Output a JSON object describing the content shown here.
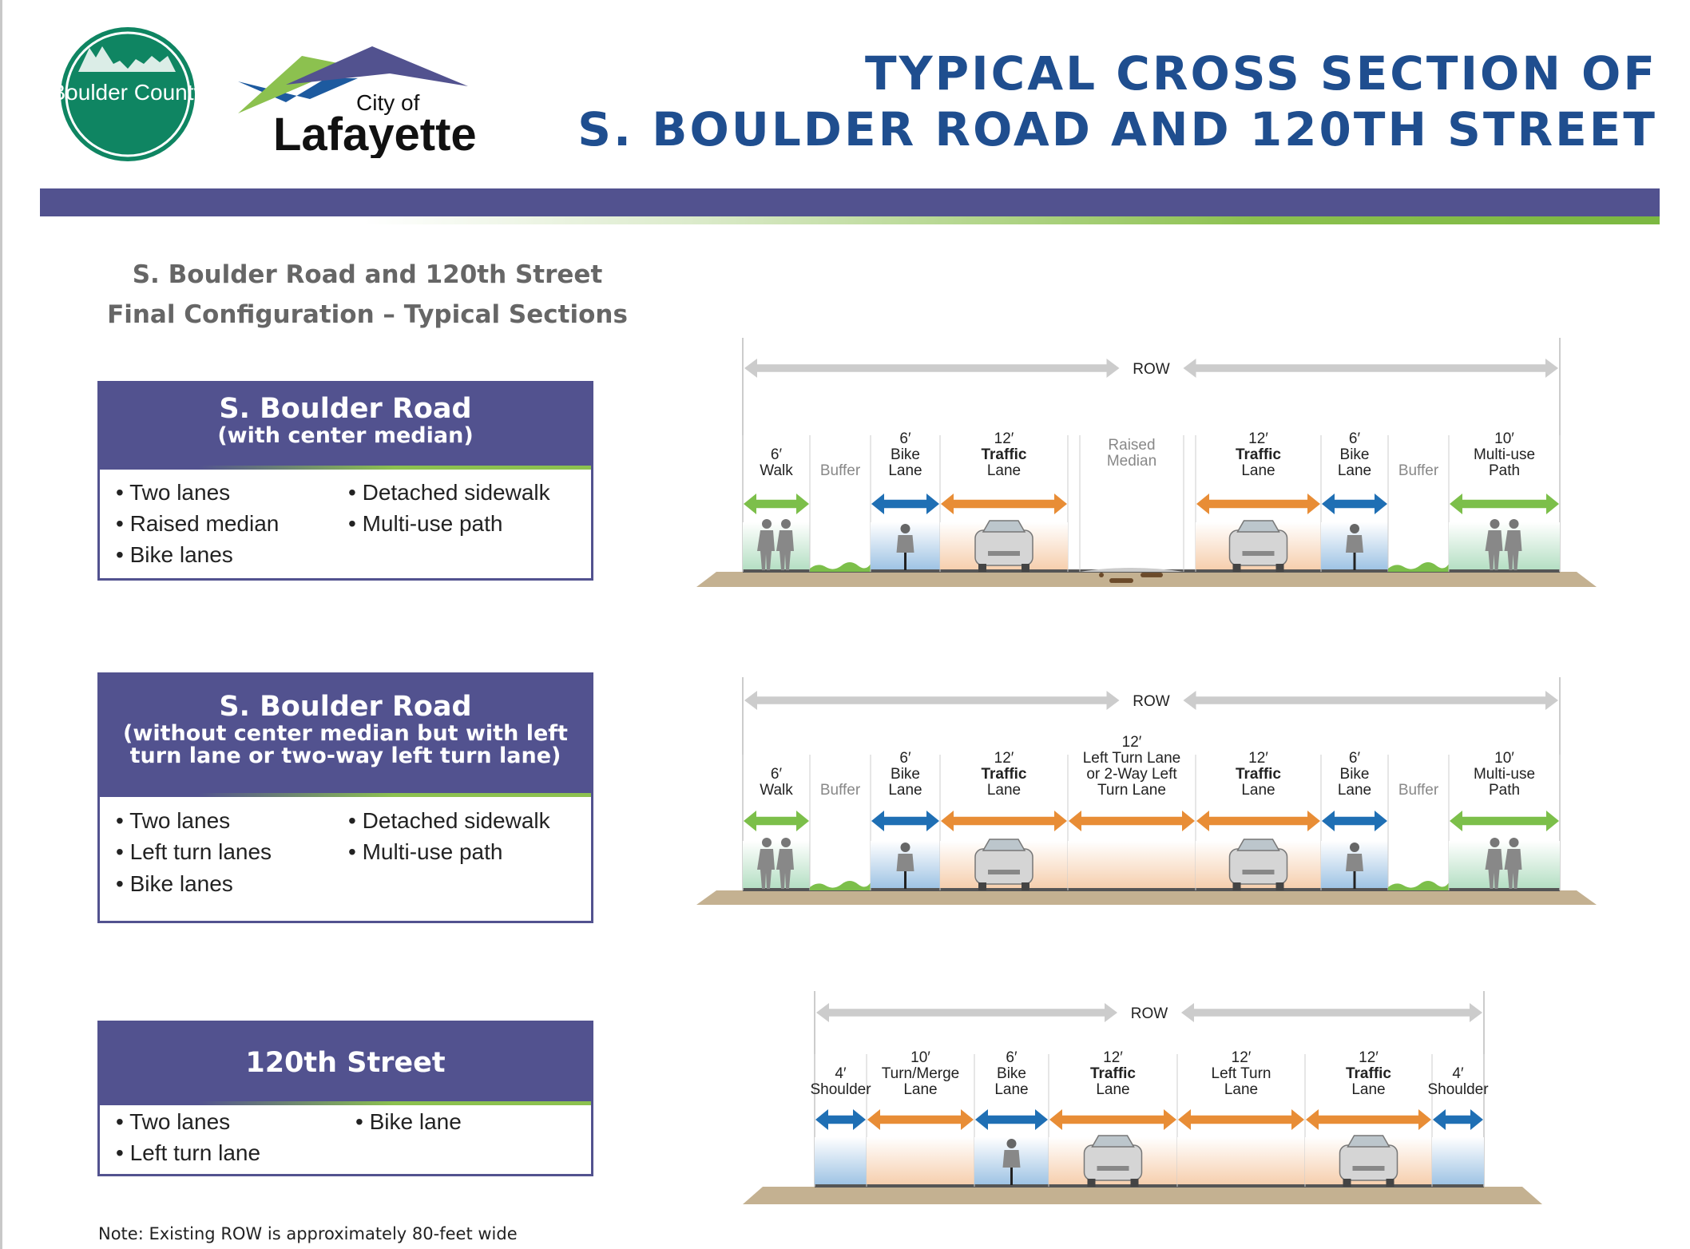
{
  "header": {
    "logo_boulder": "Boulder County",
    "logo_lafayette_small": "City of",
    "logo_lafayette_big": "Lafayette",
    "title_line1": "TYPICAL CROSS SECTION OF",
    "title_line2": "S. BOULDER ROAD AND 120TH STREET"
  },
  "subtitle": {
    "line1": "S. Boulder Road and 120th Street",
    "line2": "Final Configuration – Typical Sections"
  },
  "boxes": [
    {
      "title": "S. Boulder Road",
      "subtitle": [
        "(with center median)"
      ],
      "col1": [
        "Two lanes",
        "Raised median",
        "Bike lanes"
      ],
      "col2": [
        "Detached sidewalk",
        "Multi-use path"
      ]
    },
    {
      "title": "S. Boulder Road",
      "subtitle": [
        "(without center median but with left",
        "turn lane or two-way left turn lane)"
      ],
      "col1": [
        "Two lanes",
        "Left turn lanes",
        "Bike lanes"
      ],
      "col2": [
        "Detached sidewalk",
        "Multi-use path"
      ]
    },
    {
      "title": "120th Street",
      "subtitle": [],
      "col1": [
        "Two lanes",
        "Left turn lane"
      ],
      "col2": [
        "Bike lane"
      ]
    }
  ],
  "note": "Note: Existing ROW is approximately 80-feet wide",
  "colors": {
    "title": "#1f4e8f",
    "brand_purple": "#52528f",
    "brand_green": "#8cc14f",
    "walk_arrow": "#7cbf4a",
    "bike_arrow": "#1f6fb4",
    "traffic_arrow": "#e88d36",
    "row_arrow": "#cccccc",
    "ground": "#c4b191"
  },
  "sections": [
    {
      "row_label": "ROW",
      "columns": [
        {
          "dim": "6′",
          "name": [
            "Walk"
          ],
          "type": "walk",
          "figure": "pedestrians"
        },
        {
          "dim": "",
          "name": [
            "Buffer"
          ],
          "type": "buffer"
        },
        {
          "dim": "6′",
          "name": [
            "Bike",
            "Lane"
          ],
          "type": "bike",
          "figure": "cyclist"
        },
        {
          "dim": "12′",
          "name": [
            "Traffic",
            "Lane"
          ],
          "type": "traffic",
          "figure": "car"
        },
        {
          "dim": "",
          "name": [
            "Raised",
            "Median"
          ],
          "type": "median"
        },
        {
          "dim": "12′",
          "name": [
            "Traffic",
            "Lane"
          ],
          "type": "traffic",
          "figure": "car"
        },
        {
          "dim": "6′",
          "name": [
            "Bike",
            "Lane"
          ],
          "type": "bike",
          "figure": "cyclist"
        },
        {
          "dim": "",
          "name": [
            "Buffer"
          ],
          "type": "buffer"
        },
        {
          "dim": "10′",
          "name": [
            "Multi-use",
            "Path"
          ],
          "type": "path",
          "figure": "pedestrians"
        }
      ]
    },
    {
      "row_label": "ROW",
      "columns": [
        {
          "dim": "6′",
          "name": [
            "Walk"
          ],
          "type": "walk",
          "figure": "pedestrians"
        },
        {
          "dim": "",
          "name": [
            "Buffer"
          ],
          "type": "buffer"
        },
        {
          "dim": "6′",
          "name": [
            "Bike",
            "Lane"
          ],
          "type": "bike",
          "figure": "cyclist"
        },
        {
          "dim": "12′",
          "name": [
            "Traffic",
            "Lane"
          ],
          "type": "traffic",
          "figure": "car"
        },
        {
          "dim": "12′",
          "name": [
            "Left Turn Lane",
            "or 2-Way Left",
            "Turn Lane"
          ],
          "type": "turn"
        },
        {
          "dim": "12′",
          "name": [
            "Traffic",
            "Lane"
          ],
          "type": "traffic",
          "figure": "car"
        },
        {
          "dim": "6′",
          "name": [
            "Bike",
            "Lane"
          ],
          "type": "bike",
          "figure": "cyclist"
        },
        {
          "dim": "",
          "name": [
            "Buffer"
          ],
          "type": "buffer"
        },
        {
          "dim": "10′",
          "name": [
            "Multi-use",
            "Path"
          ],
          "type": "path",
          "figure": "pedestrians"
        }
      ]
    },
    {
      "row_label": "ROW",
      "columns": [
        {
          "dim": "4′",
          "name": [
            "Shoulder"
          ],
          "type": "shoulder"
        },
        {
          "dim": "10′",
          "name": [
            "Turn/Merge",
            "Lane"
          ],
          "type": "turn"
        },
        {
          "dim": "6′",
          "name": [
            "Bike",
            "Lane"
          ],
          "type": "bike",
          "figure": "cyclist"
        },
        {
          "dim": "12′",
          "name": [
            "Traffic",
            "Lane"
          ],
          "type": "traffic",
          "figure": "car"
        },
        {
          "dim": "12′",
          "name": [
            "Left Turn",
            "Lane"
          ],
          "type": "turn"
        },
        {
          "dim": "12′",
          "name": [
            "Traffic",
            "Lane"
          ],
          "type": "traffic",
          "figure": "car"
        },
        {
          "dim": "4′",
          "name": [
            "Shoulder"
          ],
          "type": "shoulder"
        }
      ]
    }
  ]
}
